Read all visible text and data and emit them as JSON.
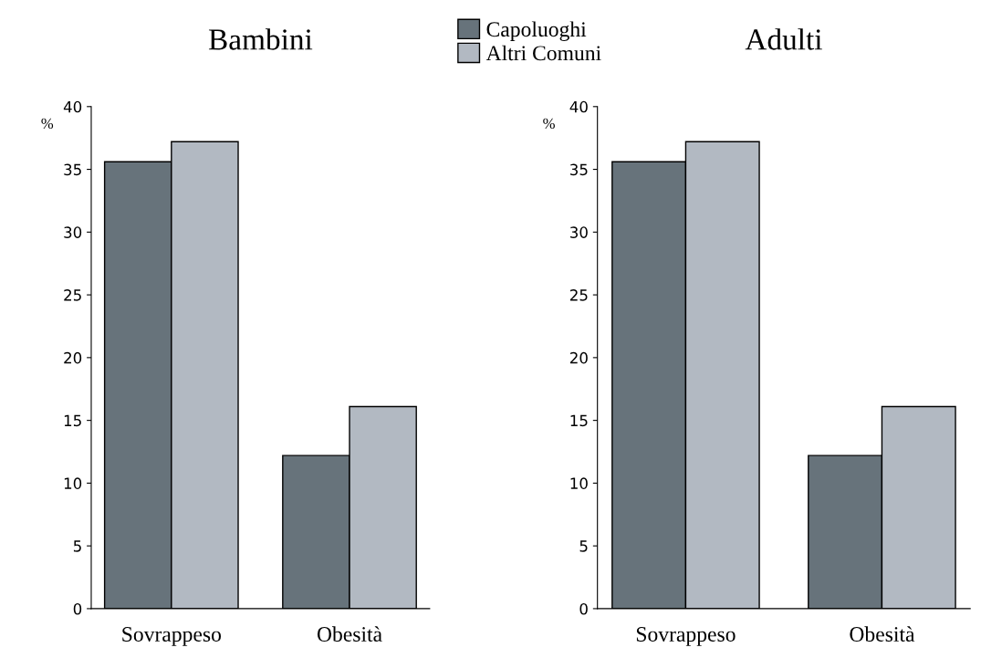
{
  "chart_data": [
    {
      "type": "bar",
      "title": "Bambini",
      "ylabel": "%",
      "categories": [
        "Sovrappeso",
        "Obesità"
      ],
      "series": [
        {
          "name": "Capoluoghi",
          "color": "#67737b",
          "values": [
            35.6,
            12.2
          ]
        },
        {
          "name": "Altri Comuni",
          "color": "#b2b9c2",
          "values": [
            37.2,
            16.1
          ]
        }
      ],
      "ylim": [
        0,
        40
      ],
      "yticks": [
        0,
        5,
        10,
        15,
        20,
        25,
        30,
        35,
        40
      ],
      "legend": "top",
      "grid": false
    },
    {
      "type": "bar",
      "title": "Adulti",
      "ylabel": "%",
      "categories": [
        "Sovrappeso",
        "Obesità"
      ],
      "series": [
        {
          "color": "#67737b",
          "values": [
            35.6,
            12.2
          ]
        },
        {
          "color": "#b2b9c2",
          "values": [
            37.2,
            16.1
          ]
        }
      ],
      "ylim": [
        0,
        40
      ],
      "yticks": [
        0,
        5,
        10,
        15,
        20,
        25,
        30,
        35,
        40
      ],
      "grid": false
    }
  ]
}
